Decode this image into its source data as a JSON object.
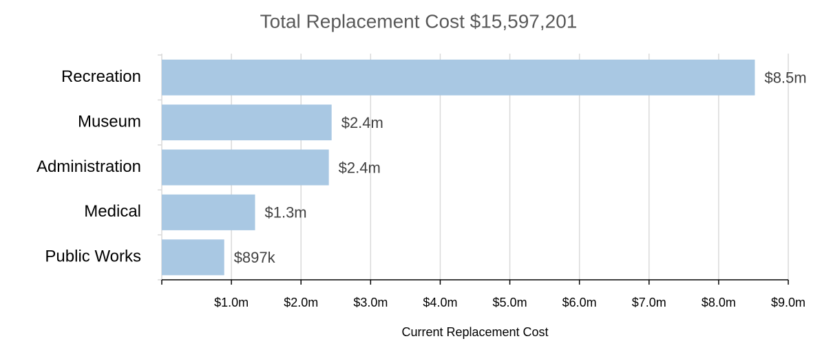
{
  "chart_data": {
    "type": "bar",
    "orientation": "horizontal",
    "title": "Total Replacement Cost $15,597,201",
    "x_label": "Current Replacement Cost",
    "categories": [
      "Recreation",
      "Museum",
      "Administration",
      "Medical",
      "Public Works"
    ],
    "values": [
      8520000,
      2440000,
      2400000,
      1340000,
      897000
    ],
    "value_labels": [
      "$8.5m",
      "$2.4m",
      "$2.4m",
      "$1.3m",
      "$897k"
    ],
    "color": "#a9c8e3",
    "xlim": [
      0,
      9000000
    ],
    "xticks": [
      {
        "value": 1000000,
        "label": "$1.0m"
      },
      {
        "value": 2000000,
        "label": "$2.0m"
      },
      {
        "value": 3000000,
        "label": "$3.0m"
      },
      {
        "value": 4000000,
        "label": "$4.0m"
      },
      {
        "value": 5000000,
        "label": "$5.0m"
      },
      {
        "value": 6000000,
        "label": "$6.0m"
      },
      {
        "value": 7000000,
        "label": "$7.0m"
      },
      {
        "value": 8000000,
        "label": "$8.0m"
      },
      {
        "value": 9000000,
        "label": "$9.0m"
      }
    ],
    "grid": true
  }
}
